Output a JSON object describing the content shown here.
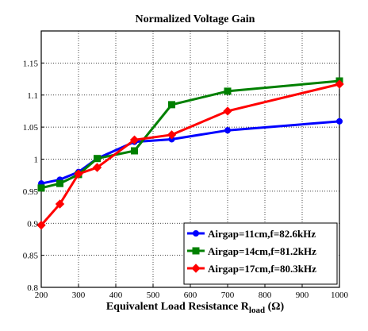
{
  "chart_data": {
    "type": "line",
    "title": "Normalized Voltage Gain",
    "xlabel_main": "Equivalent Load Resistance R",
    "xlabel_sub": "load",
    "xlabel_unit": " (Ω)",
    "xlim": [
      200,
      1000
    ],
    "ylim": [
      0.8,
      1.2
    ],
    "grid": true,
    "legend_position": "bottom-right",
    "x_ticks": [
      "200",
      "300",
      "400",
      "500",
      "600",
      "700",
      "800",
      "900",
      "1000"
    ],
    "y_ticks": [
      "0.8",
      "0.85",
      "0.9",
      "0.95",
      "1",
      "1.05",
      "1.1",
      "1.15"
    ],
    "series": [
      {
        "name": "Airgap=11cm,f=82.6kHz",
        "color": "#0000ff",
        "marker": "circle",
        "x": [
          200,
          250,
          300,
          350,
          450,
          550,
          700,
          1000
        ],
        "y": [
          0.962,
          0.968,
          0.98,
          1.001,
          1.027,
          1.031,
          1.045,
          1.059
        ]
      },
      {
        "name": "Airgap=14cm,f=81.2kHz",
        "color": "#008000",
        "marker": "square",
        "x": [
          200,
          250,
          300,
          350,
          450,
          550,
          700,
          1000
        ],
        "y": [
          0.955,
          0.962,
          0.976,
          1.001,
          1.013,
          1.085,
          1.106,
          1.122
        ]
      },
      {
        "name": "Airgap=17cm,f=80.3kHz",
        "color": "#ff0000",
        "marker": "diamond",
        "x": [
          200,
          250,
          300,
          350,
          450,
          550,
          700,
          1000
        ],
        "y": [
          0.897,
          0.93,
          0.977,
          0.987,
          1.03,
          1.038,
          1.075,
          1.117
        ]
      }
    ]
  }
}
